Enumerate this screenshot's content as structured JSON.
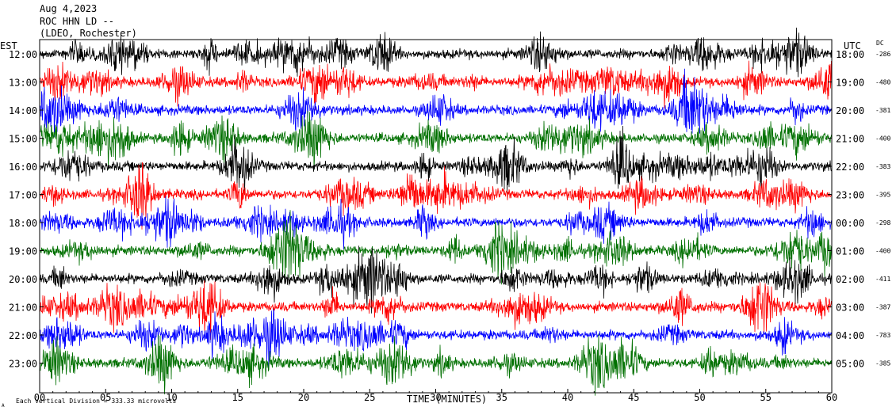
{
  "header": {
    "date": "Aug 4,2023",
    "station": "ROC HHN LD --",
    "network": "(LDEO, Rochester)"
  },
  "left_axis_label": "EST",
  "right_axis_label": "UTC",
  "dc_label": "DC",
  "footer": {
    "xlabel": "TIME (MINUTES)",
    "scale_note": "Each Vertical Division =  333.33 microvolts",
    "corner_mark": "A"
  },
  "colors": {
    "black": "#000000",
    "red": "#ff0000",
    "blue": "#0000ff",
    "green": "#007000"
  },
  "chart_data": {
    "type": "line",
    "xlim": [
      0,
      60
    ],
    "x_ticks": [
      "00",
      "05",
      "10",
      "15",
      "20",
      "25",
      "30",
      "35",
      "40",
      "45",
      "50",
      "55",
      "60"
    ],
    "x_tick_values": [
      0,
      5,
      10,
      15,
      20,
      25,
      30,
      35,
      40,
      45,
      50,
      55,
      60
    ],
    "rows": [
      {
        "est": "12:00",
        "utc": "18:00",
        "dc": "-286",
        "color": "black"
      },
      {
        "est": "13:00",
        "utc": "19:00",
        "dc": "-480",
        "color": "red"
      },
      {
        "est": "14:00",
        "utc": "20:00",
        "dc": "-381",
        "color": "blue"
      },
      {
        "est": "15:00",
        "utc": "21:00",
        "dc": "-400",
        "color": "green"
      },
      {
        "est": "16:00",
        "utc": "22:00",
        "dc": "-383",
        "color": "black"
      },
      {
        "est": "17:00",
        "utc": "23:00",
        "dc": "-395",
        "color": "red"
      },
      {
        "est": "18:00",
        "utc": "00:00",
        "dc": "-298",
        "color": "blue"
      },
      {
        "est": "19:00",
        "utc": "01:00",
        "dc": "-400",
        "color": "green"
      },
      {
        "est": "20:00",
        "utc": "02:00",
        "dc": "-411",
        "color": "black"
      },
      {
        "est": "21:00",
        "utc": "03:00",
        "dc": "-387",
        "color": "red"
      },
      {
        "est": "22:00",
        "utc": "04:00",
        "dc": "-783",
        "color": "blue"
      },
      {
        "est": "23:00",
        "utc": "05:00",
        "dc": "-385",
        "color": "green"
      }
    ]
  }
}
